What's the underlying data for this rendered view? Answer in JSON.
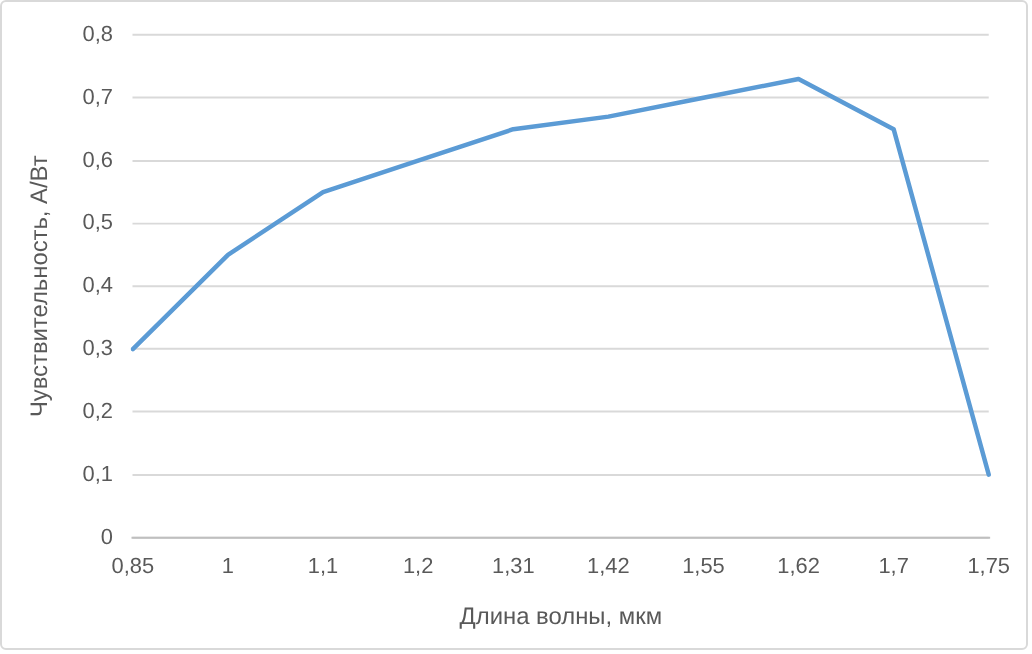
{
  "chart_data": {
    "type": "line",
    "xlabel": "Длина волны, мкм",
    "ylabel": "Чувствительность, А/Вт",
    "categories": [
      "0,85",
      "1",
      "1,1",
      "1,2",
      "1,31",
      "1,42",
      "1,55",
      "1,62",
      "1,7",
      "1,75"
    ],
    "series": [
      {
        "color": "#5b9bd5",
        "values": [
          0.3,
          0.45,
          0.55,
          0.6,
          0.65,
          0.67,
          0.7,
          0.73,
          0.65,
          0.1
        ]
      }
    ],
    "ylim": [
      0,
      0.8
    ],
    "yticks": [
      {
        "value": 0,
        "label": "0"
      },
      {
        "value": 0.1,
        "label": "0,1"
      },
      {
        "value": 0.2,
        "label": "0,2"
      },
      {
        "value": 0.3,
        "label": "0,3"
      },
      {
        "value": 0.4,
        "label": "0,4"
      },
      {
        "value": 0.5,
        "label": "0,5"
      },
      {
        "value": 0.6,
        "label": "0,6"
      },
      {
        "value": 0.7,
        "label": "0,7"
      },
      {
        "value": 0.8,
        "label": "0,8"
      }
    ],
    "grid": "y",
    "legend": false,
    "marker": "none",
    "line_style": "solid"
  }
}
